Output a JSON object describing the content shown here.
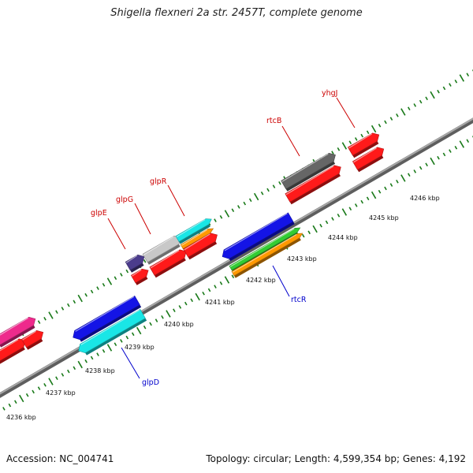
{
  "title": "Shigella flexneri 2a str. 2457T, complete genome",
  "footer": {
    "accession": "Accession: NC_004741",
    "stats": "Topology: circular; Length: 4,599,354 bp; Genes: 4,192"
  },
  "scale_labels": [
    "4236 kbp",
    "4237 kbp",
    "4238 kbp",
    "4239 kbp",
    "4240 kbp",
    "4241 kbp",
    "4242 kbp",
    "4243 kbp",
    "4244 kbp",
    "4245 kbp",
    "4246 kbp"
  ],
  "gene_labels": {
    "glpE": "glpE",
    "glpG": "glpG",
    "glpR": "glpR",
    "rtcB": "rtcB",
    "yhgJ": "yhgJ",
    "rtcR": "rtcR",
    "glpD": "glpD"
  },
  "colors": {
    "backbone": "#888888",
    "tick": "#1a7a1a",
    "forward_label": "#cc0000",
    "reverse_label": "#0000cc",
    "red": "#ff1a1a",
    "blue": "#1414e6",
    "cyan": "#19e6e6",
    "green": "#33cc33",
    "orange": "#ff9900",
    "gray_dark": "#666666",
    "gray_light": "#c8c8c8",
    "purple": "#4b3c8c",
    "magenta": "#ee2a8c"
  }
}
